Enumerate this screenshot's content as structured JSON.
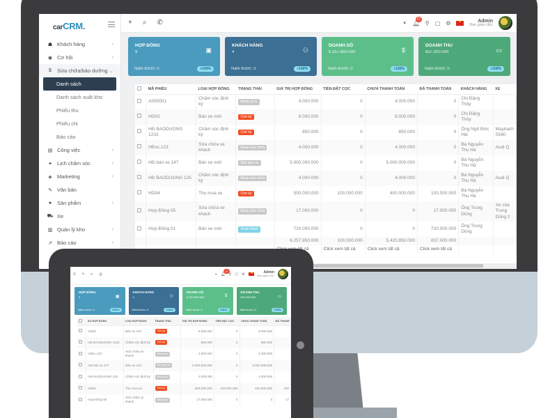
{
  "app": {
    "logo_prefix": "car",
    "logo_main": "CRM.",
    "accent": "#2b8fbd"
  },
  "sidebar": {
    "items": [
      {
        "label": "Khách hàng",
        "icon": "users-icon",
        "has_children": true
      },
      {
        "label": "Cơ hội",
        "icon": "eye-icon",
        "has_children": true
      },
      {
        "label": "Sửa chữa/bảo dưỡng",
        "icon": "dollar-icon",
        "has_children": true,
        "open": true
      },
      {
        "label": "Công việc",
        "icon": "briefcase-icon",
        "has_children": true
      },
      {
        "label": "Lịch chăm sóc",
        "icon": "calendar-care-icon",
        "has_children": true
      },
      {
        "label": "Marketing",
        "icon": "megaphone-icon",
        "has_children": true
      },
      {
        "label": "Văn bản",
        "icon": "document-icon",
        "has_children": false
      },
      {
        "label": "Sản phẩm",
        "icon": "box-icon",
        "has_children": true
      },
      {
        "label": "Xe",
        "icon": "car-icon",
        "has_children": false
      },
      {
        "label": "Quản lý kho",
        "icon": "warehouse-icon",
        "has_children": true
      },
      {
        "label": "Báo cáo",
        "icon": "chart-icon",
        "has_children": true
      }
    ],
    "submenu": [
      {
        "label": "Danh sách",
        "active": true
      },
      {
        "label": "Danh sách xuất kho"
      },
      {
        "label": "Phiếu thu"
      },
      {
        "label": "Phiếu chi"
      },
      {
        "label": "Báo cáo"
      }
    ]
  },
  "topbar": {
    "notification_count": "27",
    "user_name": "Admin",
    "user_role": "Ban giám đốc"
  },
  "cards": [
    {
      "title": "HỢP ĐỒNG",
      "value": "9",
      "prev": "Năm trước: 0",
      "pct": "+100%",
      "color": "#4a9bbd",
      "icon": "calendar-icon",
      "glyph": "▣"
    },
    {
      "title": "KHÁCH HÀNG",
      "value": "4",
      "prev": "Năm trước: 0",
      "pct": "+100%",
      "color": "#3b6f93",
      "icon": "users-icon",
      "glyph": "⚇"
    },
    {
      "title": "DOANH SỐ",
      "value": "6.257.850.000",
      "prev": "Năm trước: 0",
      "pct": "+100%",
      "color": "#5cbf8a",
      "icon": "dollar-icon",
      "glyph": "$"
    },
    {
      "title": "DOANH THU",
      "value": "837.000.000",
      "prev": "Năm trước: 0",
      "pct": "+100%",
      "color": "#4ea97a",
      "icon": "credit-card-icon",
      "glyph": "▭"
    }
  ],
  "table": {
    "headers": [
      "MÃ PHIẾU",
      "LOẠI HỢP ĐỒNG",
      "TRẠNG THÁI",
      "GIÁ TRỊ HỢP ĐỒNG",
      "TIỀN ĐẶT CỌC",
      "CHƯA THANH TOÁN",
      "ĐÃ THANH TOÁN",
      "KHÁCH HÀNG",
      "XE"
    ],
    "rows": [
      {
        "code": "A000001",
        "type": "Chăm sóc định kỳ",
        "status": "Đang sử lý",
        "status_color": "#c8c8c8",
        "value": "4.000.000",
        "deposit": "0",
        "unpaid": "4.000.000",
        "paid": "0",
        "customer": "Chị Đặng Thủy",
        "car": ""
      },
      {
        "code": "HD02",
        "type": "Bán xe mới",
        "status": "Chờ ký",
        "status_color": "#f04e23",
        "value": "8.000.000",
        "deposit": "0",
        "unpaid": "8.000.000",
        "paid": "0",
        "customer": "Chị Đặng Thủy",
        "car": ""
      },
      {
        "code": "HĐ BAODUONG 1233",
        "type": "Chăm sóc định kỳ",
        "status": "Chờ ký",
        "status_color": "#f04e23",
        "value": "850.000",
        "deposit": "0",
        "unpaid": "850.000",
        "paid": "0",
        "customer": "Ông Ngô Đức Hải",
        "car": "Maybach S560"
      },
      {
        "code": "HĐsc.123",
        "type": "Sửa chữa xe khách",
        "status": "Đang sửa chữa",
        "status_color": "#c8c8c8",
        "value": "4.000.000",
        "deposit": "0",
        "unpaid": "4.000.000",
        "paid": "0",
        "customer": "Bà Nguyễn Thu Hà",
        "car": "Audi Q"
      },
      {
        "code": "HĐ bán xe 147",
        "type": "Bán xe mới",
        "status": "Bàn giao xe",
        "status_color": "#c8c8c8",
        "value": "5.000.000.000",
        "deposit": "0",
        "unpaid": "5.000.000.000",
        "paid": "0",
        "customer": "Bà Nguyễn Thu Hà",
        "car": ""
      },
      {
        "code": "HĐ BAODUONG 125",
        "type": "Chăm sóc định kỳ",
        "status": "Đang sửa chữa",
        "status_color": "#c8c8c8",
        "value": "4.000.000",
        "deposit": "0",
        "unpaid": "4.000.000",
        "paid": "0",
        "customer": "Bà Nguyễn Thu Hà",
        "car": "Audi Q"
      },
      {
        "code": "HD04",
        "type": "Thu mua xe",
        "status": "Chờ ký",
        "status_color": "#f04e23",
        "value": "500.000.000",
        "deposit": "100.000.000",
        "unpaid": "400.000.000",
        "paid": "100.000.000",
        "customer": "Bà Nguyễn Thu Hà",
        "car": ""
      },
      {
        "code": "Hợp Đồng 05",
        "type": "Sửa chữa xe khách",
        "status": "Đang sửa chữa",
        "status_color": "#c8c8c8",
        "value": "17.000.000",
        "deposit": "0",
        "unpaid": "0",
        "paid": "17.000.000",
        "customer": "Ông Trung Dũng",
        "car": "Xe của Trung Dũng 2"
      },
      {
        "code": "Hợp Đồng 01",
        "type": "Bán xe mới",
        "status": "Hoàn thành",
        "status_color": "#7fd3e6",
        "value": "720.000.000",
        "deposit": "0",
        "unpaid": "0",
        "paid": "720.000.000",
        "customer": "Ông Trung Dũng",
        "car": ""
      }
    ],
    "totals": {
      "value": "6.257.850.000",
      "deposit": "100.000.000",
      "unpaid": "5.420.850.000",
      "paid": "837.000.000"
    },
    "view_all": "Click xem tất cả"
  },
  "tablet": {
    "headers": [
      "SỐ HỢP ĐỒNG",
      "LOẠI HỢP ĐỒNG",
      "TRẠNG THÁI",
      "GIÁ TRỊ HỢP ĐỒNG",
      "TIỀN ĐẶT CỌC",
      "CHƯA THANH TOÁN",
      "ĐÃ THANH"
    ],
    "card_values": [
      "9",
      "4",
      "6.257.850.000",
      "837.000.000"
    ],
    "rows": [
      {
        "code": "HD02",
        "type": "Bán xe mới",
        "status": "Chờ ký",
        "status_color": "#f04e23",
        "value": "8.000.000",
        "deposit": "0",
        "unpaid": "8.000.000",
        "paid": ""
      },
      {
        "code": "HĐ BAODUONG 1233",
        "type": "Chăm sóc định kỳ",
        "status": "Chờ ký",
        "status_color": "#f04e23",
        "value": "850.000",
        "deposit": "0",
        "unpaid": "850.000",
        "paid": ""
      },
      {
        "code": "HĐsc.123",
        "type": "Sửa chữa xe khách",
        "status": "Đang sửa",
        "status_color": "#c8c8c8",
        "value": "4.000.000",
        "deposit": "0",
        "unpaid": "4.000.000",
        "paid": ""
      },
      {
        "code": "HĐ bán xe 147",
        "type": "Bán xe mới",
        "status": "Bàn giao xe",
        "status_color": "#c8c8c8",
        "value": "5.000.000.000",
        "deposit": "0",
        "unpaid": "5.000.000.000",
        "paid": ""
      },
      {
        "code": "HĐ BAODUONG 125",
        "type": "Chăm sóc định kỳ",
        "status": "Đang sửa",
        "status_color": "#c8c8c8",
        "value": "4.000.000",
        "deposit": "0",
        "unpaid": "4.000.000",
        "paid": ""
      },
      {
        "code": "HD04",
        "type": "Thu mua xe",
        "status": "Chờ ký",
        "status_color": "#f04e23",
        "value": "500.000.000",
        "deposit": "100.000.000",
        "unpaid": "400.000.000",
        "paid": "100"
      },
      {
        "code": "Hợp Đồng 05",
        "type": "Sửa chữa xe khách",
        "status": "Đang sửa",
        "status_color": "#c8c8c8",
        "value": "17.000.000",
        "deposit": "0",
        "unpaid": "0",
        "paid": "17"
      }
    ]
  }
}
